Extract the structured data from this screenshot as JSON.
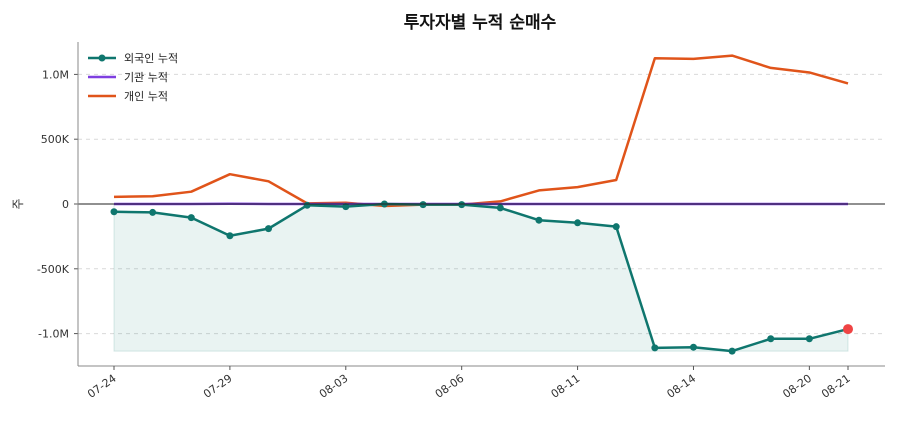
{
  "chart_data": {
    "type": "line",
    "title": "투자자별 누적 순매수",
    "ylabel": "주",
    "ylim": [
      -1250000,
      1250000
    ],
    "grid": "horizontal-dashed",
    "legend_position": "top-left",
    "y_ticks": [
      {
        "value": 1000000,
        "label": "1.0M"
      },
      {
        "value": 500000,
        "label": "500K"
      },
      {
        "value": 0,
        "label": "0"
      },
      {
        "value": -500000,
        "label": "-500K"
      },
      {
        "value": -1000000,
        "label": "-1.0M"
      }
    ],
    "x_tick_labels": [
      "07-24",
      "07-29",
      "08-03",
      "08-06",
      "08-11",
      "08-14",
      "08-20",
      "08-21"
    ],
    "x_tick_index": [
      0,
      3,
      6,
      9,
      12,
      15,
      18,
      19
    ],
    "series": [
      {
        "name": "외국인 누적",
        "color": "#0f766e",
        "markers": true,
        "fill": true,
        "values": [
          -60000,
          -65000,
          -105000,
          -245000,
          -190000,
          -10000,
          -20000,
          0,
          -5000,
          -5000,
          -30000,
          -125000,
          -145000,
          -175000,
          -1110000,
          -1105000,
          -1135000,
          -1040000,
          -1040000,
          -965000
        ]
      },
      {
        "name": "기관 누적",
        "color": "#7e3fe0",
        "markers": false,
        "fill": false,
        "values": [
          0,
          0,
          0,
          2000,
          0,
          0,
          0,
          0,
          0,
          0,
          0,
          0,
          0,
          0,
          0,
          0,
          0,
          0,
          0,
          0
        ]
      },
      {
        "name": "개인 누적",
        "color": "#e0541a",
        "markers": false,
        "fill": false,
        "values": [
          55000,
          60000,
          95000,
          230000,
          175000,
          5000,
          10000,
          -15000,
          -5000,
          -5000,
          20000,
          105000,
          130000,
          185000,
          1125000,
          1120000,
          1145000,
          1050000,
          1015000,
          930000
        ]
      }
    ],
    "last_point_color": "#ef4444"
  }
}
